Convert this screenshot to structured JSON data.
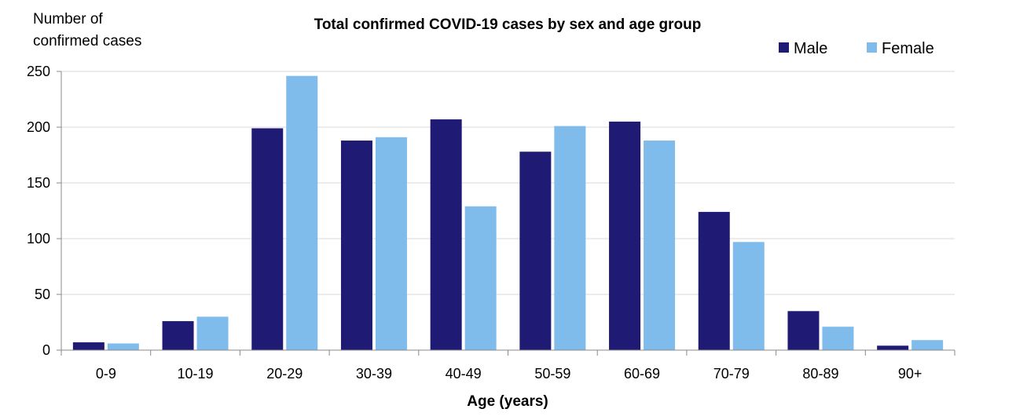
{
  "chart_data": {
    "type": "bar",
    "title": "Total confirmed COVID-19 cases by sex and age group",
    "ylabel_lines": [
      "Number of",
      "confirmed cases"
    ],
    "xlabel": "Age (years)",
    "categories": [
      "0-9",
      "10-19",
      "20-29",
      "30-39",
      "40-49",
      "50-59",
      "60-69",
      "70-79",
      "80-89",
      "90+"
    ],
    "series": [
      {
        "name": "Male",
        "color": "#1f1a73",
        "values": [
          7,
          26,
          199,
          188,
          207,
          178,
          205,
          124,
          35,
          4
        ]
      },
      {
        "name": "Female",
        "color": "#80bceb",
        "values": [
          6,
          30,
          246,
          191,
          129,
          201,
          188,
          97,
          21,
          9
        ]
      }
    ],
    "ylim": [
      0,
      250
    ],
    "yticks": [
      0,
      50,
      100,
      150,
      200,
      250
    ],
    "grid": true,
    "legend_position": "top-right"
  }
}
